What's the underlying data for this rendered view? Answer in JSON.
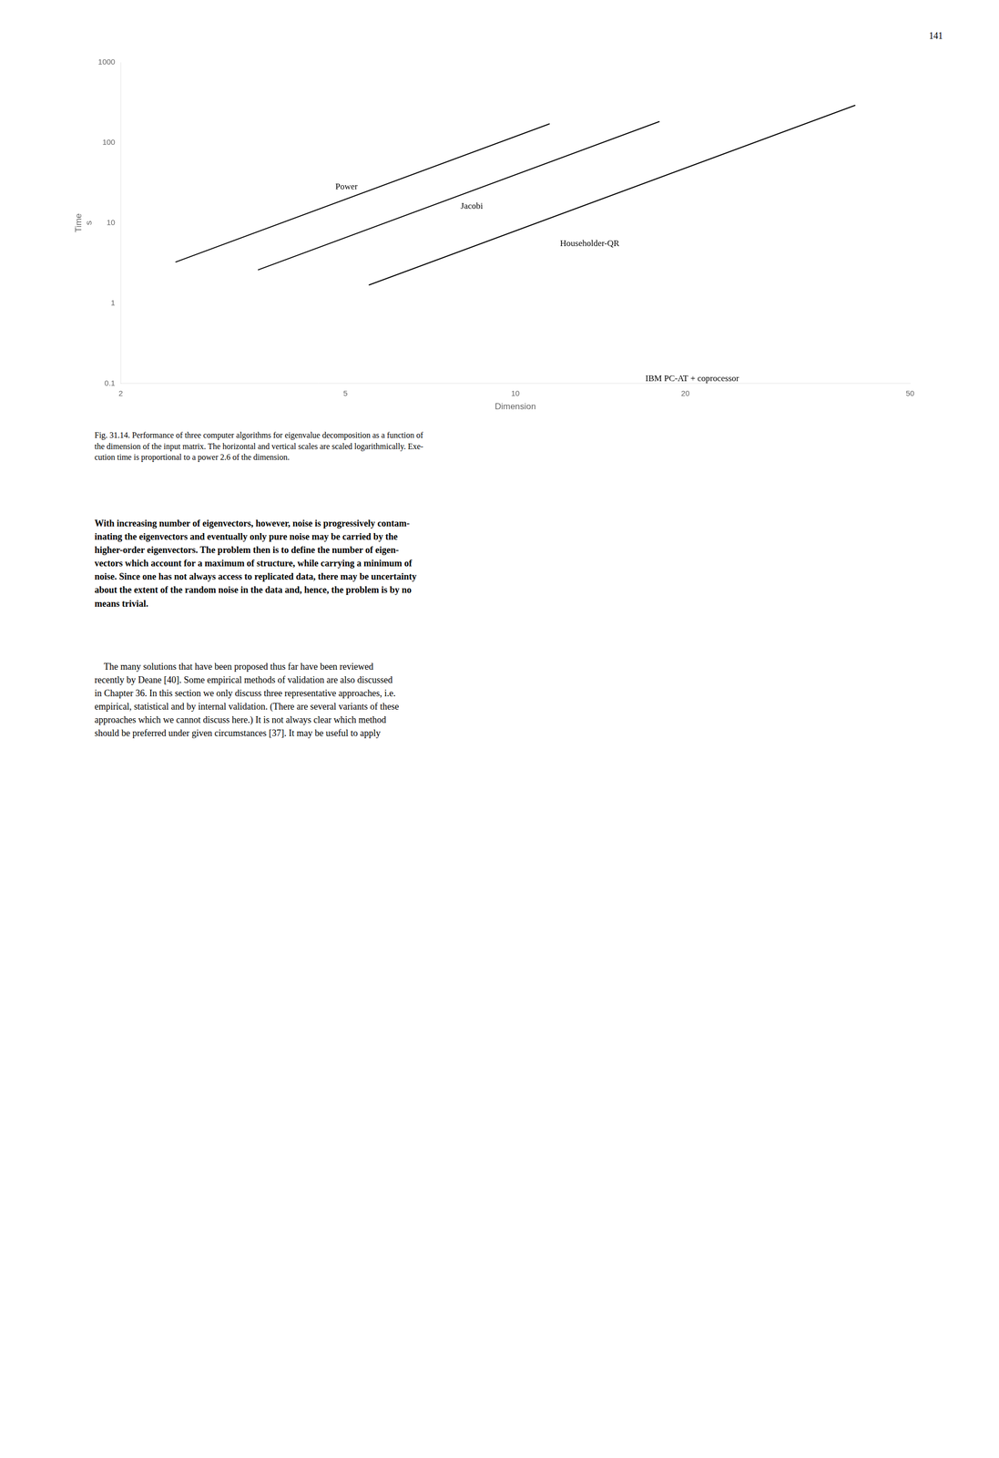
{
  "page_number": "141",
  "body_text": [
    "With increasing number of eigenvectors, however, noise is progressively contam-\ninating the eigenvectors and eventually only pure noise may be carried by the\nhigher-order eigenvectors. The problem then is to define the number of eigen-\nvectors which account for a maximum of structure, while carrying a minimum of\nnoise. Since one has not always access to replicated data, there may be uncertainty\nabout the extent of the random noise in the data and, hence, the problem is by no\nmeans trivial.",
    "    The many solutions that have been proposed thus far have been reviewed\nrecently by Deane [40]. Some empirical methods of validation are also discussed\nin Chapter 36. In this section we only discuss three representative approaches, i.e.\nempirical, statistical and by internal validation. (There are several variants of these\napproaches which we cannot discuss here.) It is not always clear which method\nshould be preferred under given circumstances [37]. It may be useful to apply"
  ],
  "chart_data": {
    "type": "line",
    "xlabel": "Dimension",
    "ylabel": [
      "Time",
      "s"
    ],
    "log": true,
    "grid": false,
    "xlim": [
      2,
      50
    ],
    "ylim": [
      0.1,
      1000
    ],
    "xticks": [
      2,
      5,
      10,
      20,
      50
    ],
    "yticks": [
      0.1,
      1,
      10,
      100,
      1000
    ],
    "series": [
      {
        "name": "Power",
        "color": "#000000",
        "x": [
          2.5,
          11.5
        ],
        "values": [
          3.2491,
          171.77
        ]
      },
      {
        "name": "Jacobi",
        "color": "#000000",
        "x": [
          3.5,
          18.0
        ],
        "values": [
          2.5976,
          183.53
        ]
      },
      {
        "name": "Householder-QR",
        "color": "#000000",
        "x": [
          5.5,
          40.0
        ],
        "values": [
          1.6826,
          292.68
        ]
      }
    ],
    "annotations": [
      {
        "text": "Power",
        "x": 4.8,
        "y": 28
      },
      {
        "text": "Jacobi",
        "x": 8,
        "y": 16
      },
      {
        "text": "Householder-QR",
        "x": 12,
        "y": 5.5
      },
      {
        "text": "IBM PC-AT + coprocessor",
        "x": 17,
        "y": 0.115
      }
    ],
    "caption": "Fig. 31.14. Performance of three computer algorithms for eigenvalue decomposition as a function of\nthe dimension of the input matrix. The horizontal and vertical scales are scaled logarithmically. Exe-\ncution time is proportional to a power 2.6 of the dimension."
  }
}
